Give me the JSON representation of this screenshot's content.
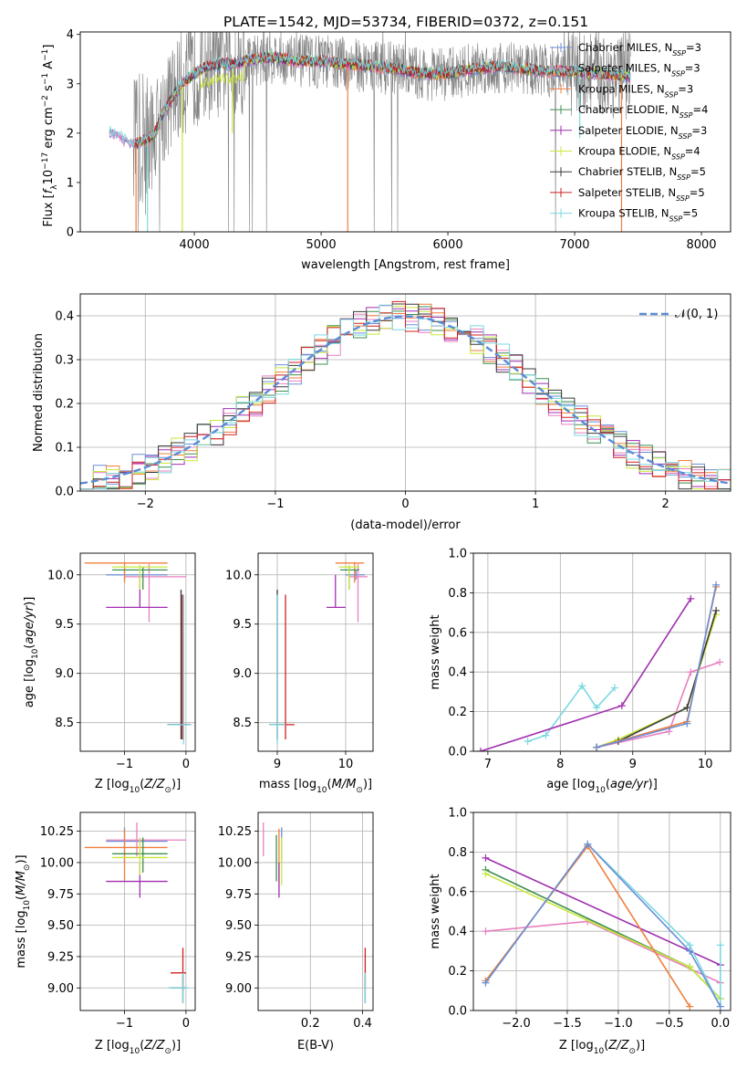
{
  "figure": {
    "title": "PLATE=1542, MJD=53734, FIBERID=0372, z=0.151"
  },
  "colors": {
    "data_gray": "#808080",
    "grid": "#b0b0b0",
    "normal_curve": "#5b8bd6"
  },
  "series_colors": [
    "#6a8fd6",
    "#e87fc0",
    "#f07f3c",
    "#3f8f4f",
    "#a02fb0",
    "#c8e83c",
    "#3a3a3a",
    "#d02020",
    "#7ad8e0"
  ],
  "chart_data": [
    {
      "id": "spectrum",
      "type": "line",
      "title": "PLATE=1542, MJD=53734, FIBERID=0372, z=0.151",
      "xlabel": "wavelength [Angstrom, rest frame]",
      "ylabel": "Flux [f_λ10^-17 erg cm^-2 s^-1 A^-1]",
      "xlim": [
        3100,
        8230
      ],
      "ylim": [
        0,
        4.05
      ],
      "xticks": [
        "4000",
        "5000",
        "6000",
        "7000",
        "8000"
      ],
      "yticks": [
        "0",
        "1",
        "2",
        "3",
        "4"
      ],
      "grid": false,
      "legend_position": "top-right",
      "legend": [
        {
          "base": "Chabrier MILES, N",
          "sub": "SSP",
          "tail": "=3"
        },
        {
          "base": "Salpeter MILES, N",
          "sub": "SSP",
          "tail": "=3"
        },
        {
          "base": "Kroupa MILES, N",
          "sub": "SSP",
          "tail": "=3"
        },
        {
          "base": "Chabrier ELODIE, N",
          "sub": "SSP",
          "tail": "=4"
        },
        {
          "base": "Salpeter ELODIE, N",
          "sub": "SSP",
          "tail": "=3"
        },
        {
          "base": "Kroupa ELODIE, N",
          "sub": "SSP",
          "tail": "=4"
        },
        {
          "base": "Chabrier STELIB, N",
          "sub": "SSP",
          "tail": "=5"
        },
        {
          "base": "Salpeter STELIB, N",
          "sub": "SSP",
          "tail": "=5"
        },
        {
          "base": "Kroupa STELIB, N",
          "sub": "SSP",
          "tail": "=5"
        }
      ],
      "model_x": [
        3330,
        3400,
        3450,
        3500,
        3550,
        3600,
        3650,
        3700,
        3750,
        3800,
        3850,
        3900,
        3950,
        4000,
        4100,
        4200,
        4300,
        4400,
        4500,
        4600,
        4700,
        4800,
        4900,
        5000,
        5200,
        5400,
        5600,
        5800,
        6000,
        6200,
        6400,
        6600,
        6800,
        7000,
        7200,
        7400
      ],
      "model_y": [
        2.05,
        1.95,
        1.85,
        1.82,
        1.8,
        1.85,
        1.9,
        2.05,
        2.4,
        2.6,
        2.8,
        3.0,
        3.1,
        3.2,
        3.35,
        3.4,
        3.4,
        3.45,
        3.5,
        3.55,
        3.5,
        3.45,
        3.45,
        3.45,
        3.4,
        3.35,
        3.3,
        3.2,
        3.2,
        3.3,
        3.35,
        3.3,
        3.25,
        3.25,
        3.2,
        3.15
      ]
    },
    {
      "id": "residuals",
      "type": "line",
      "xlabel": "(data-model)/error",
      "ylabel": "Normed distribution",
      "xlim": [
        -2.5,
        2.5
      ],
      "ylim": [
        0,
        0.45
      ],
      "xticks": [
        "−2",
        "−1",
        "0",
        "1",
        "2"
      ],
      "yticks": [
        "0.0",
        "0.1",
        "0.2",
        "0.3",
        "0.4"
      ],
      "grid": true,
      "legend_position": "top-right",
      "legend": [
        "𝒩(0, 1)"
      ],
      "normal": {
        "mean": 0,
        "sigma": 1
      },
      "bin_width": 0.1
    },
    {
      "id": "age-vs-Z",
      "type": "scatter",
      "xlabel": "Z [log10(Z/Z⊙)]",
      "ylabel": "age  [log10(age/yr)]",
      "xlim": [
        -1.72,
        0.15
      ],
      "ylim": [
        8.21,
        10.22
      ],
      "xticks": [
        "−1",
        "0"
      ],
      "yticks": [
        "8.5",
        "9.0",
        "9.5",
        "10.0"
      ],
      "grid": true,
      "points": [
        {
          "x": -1.0,
          "xl": -1.3,
          "xh": -0.3,
          "y": 10.0,
          "yl": 9.95,
          "yh": 10.05,
          "c": 0
        },
        {
          "x": -0.6,
          "xl": -1.0,
          "xh": -0.0,
          "y": 9.98,
          "yl": 9.52,
          "yh": 10.11,
          "c": 1
        },
        {
          "x": -1.0,
          "xl": -1.65,
          "xh": -0.3,
          "y": 10.12,
          "yl": 9.92,
          "yh": 10.13,
          "c": 2
        },
        {
          "x": -0.7,
          "xl": -1.2,
          "xh": -0.3,
          "y": 10.05,
          "yl": 9.85,
          "yh": 10.08,
          "c": 3
        },
        {
          "x": -0.75,
          "xl": -1.3,
          "xh": -0.3,
          "y": 9.67,
          "yl": 9.67,
          "yh": 10.0,
          "c": 4
        },
        {
          "x": -0.75,
          "xl": -1.2,
          "xh": -0.3,
          "y": 10.08,
          "yl": 9.85,
          "yh": 10.1,
          "c": 5
        },
        {
          "x": -0.08,
          "xl": -0.3,
          "xh": 0.08,
          "y": 8.48,
          "yl": 8.33,
          "yh": 9.85,
          "c": 6
        },
        {
          "x": -0.06,
          "xl": -0.3,
          "xh": 0.08,
          "y": 8.48,
          "yl": 8.33,
          "yh": 9.8,
          "c": 7
        },
        {
          "x": -0.04,
          "xl": -0.3,
          "xh": 0.08,
          "y": 8.48,
          "yl": 8.28,
          "yh": 9.8,
          "c": 8
        }
      ]
    },
    {
      "id": "age-vs-mass",
      "type": "scatter",
      "xlabel": "mass [log10(M/M⊙)]",
      "ylabel": "",
      "xlim": [
        8.72,
        10.4
      ],
      "ylim": [
        8.21,
        10.22
      ],
      "xticks": [
        "9",
        "10"
      ],
      "yticks": [
        "8.5",
        "9.0",
        "9.5",
        "10.0"
      ],
      "grid": true,
      "points": [
        {
          "x": 10.15,
          "xl": 10.0,
          "xh": 10.28,
          "y": 10.0,
          "yl": 9.95,
          "yh": 10.05,
          "c": 0
        },
        {
          "x": 10.18,
          "xl": 10.05,
          "xh": 10.32,
          "y": 9.98,
          "yl": 9.52,
          "yh": 10.11,
          "c": 1
        },
        {
          "x": 10.13,
          "xl": 9.85,
          "xh": 10.27,
          "y": 10.12,
          "yl": 9.92,
          "yh": 10.13,
          "c": 2
        },
        {
          "x": 10.05,
          "xl": 9.92,
          "xh": 10.2,
          "y": 10.05,
          "yl": 9.85,
          "yh": 10.08,
          "c": 3
        },
        {
          "x": 9.85,
          "xl": 9.72,
          "xh": 10.0,
          "y": 9.67,
          "yl": 9.67,
          "yh": 10.0,
          "c": 4
        },
        {
          "x": 10.05,
          "xl": 9.9,
          "xh": 10.2,
          "y": 10.08,
          "yl": 9.85,
          "yh": 10.1,
          "c": 5
        },
        {
          "x": 9.0,
          "xl": 8.88,
          "xh": 9.1,
          "y": 8.48,
          "yl": 8.33,
          "yh": 9.85,
          "c": 6
        },
        {
          "x": 9.12,
          "xl": 8.98,
          "xh": 9.25,
          "y": 8.48,
          "yl": 8.33,
          "yh": 9.8,
          "c": 7
        },
        {
          "x": 9.0,
          "xl": 8.88,
          "xh": 9.12,
          "y": 8.48,
          "yl": 8.28,
          "yh": 9.8,
          "c": 8
        }
      ]
    },
    {
      "id": "mass-weight-vs-age",
      "type": "line",
      "xlabel": "age  [log10(age/yr)]",
      "ylabel": "mass weight",
      "xlim": [
        6.8,
        10.35
      ],
      "ylim": [
        0,
        1.0
      ],
      "xticks": [
        "7",
        "8",
        "9",
        "10"
      ],
      "yticks": [
        "0.0",
        "0.2",
        "0.4",
        "0.6",
        "0.8",
        "1.0"
      ],
      "grid": true,
      "series": [
        {
          "c": 8,
          "x": [
            7.55,
            7.8,
            8.3,
            8.5,
            8.75
          ],
          "y": [
            0.05,
            0.08,
            0.33,
            0.22,
            0.32
          ]
        },
        {
          "c": 4,
          "x": [
            6.9,
            8.85,
            9.8
          ],
          "y": [
            0.0,
            0.23,
            0.77
          ]
        },
        {
          "c": 1,
          "x": [
            8.5,
            9.5,
            9.8,
            10.2
          ],
          "y": [
            0.02,
            0.1,
            0.4,
            0.45
          ]
        },
        {
          "c": 5,
          "x": [
            8.5,
            8.8,
            9.75,
            10.15
          ],
          "y": [
            0.02,
            0.06,
            0.22,
            0.69
          ]
        },
        {
          "c": 6,
          "x": [
            8.5,
            8.8,
            9.75,
            10.15
          ],
          "y": [
            0.02,
            0.05,
            0.22,
            0.71
          ]
        },
        {
          "c": 2,
          "x": [
            8.5,
            9.75,
            10.15
          ],
          "y": [
            0.02,
            0.15,
            0.83
          ]
        },
        {
          "c": 0,
          "x": [
            8.5,
            9.75,
            10.15
          ],
          "y": [
            0.02,
            0.14,
            0.84
          ]
        }
      ]
    },
    {
      "id": "mass-vs-Z",
      "type": "scatter",
      "xlabel": "Z [log10(Z/Z⊙)]",
      "ylabel": "mass [log10(M/M⊙)]",
      "xlim": [
        -1.72,
        0.15
      ],
      "ylim": [
        8.82,
        10.4
      ],
      "xticks": [
        "−1",
        "0"
      ],
      "yticks": [
        "9.00",
        "9.25",
        "9.50",
        "9.75",
        "10.00",
        "10.25"
      ],
      "grid": true,
      "points": [
        {
          "x": -1.0,
          "xl": -1.3,
          "xh": -0.3,
          "y": 10.17,
          "yl": 10.0,
          "yh": 10.28,
          "c": 0
        },
        {
          "x": -0.8,
          "xl": -1.3,
          "xh": 0.0,
          "y": 10.18,
          "yl": 10.05,
          "yh": 10.32,
          "c": 1
        },
        {
          "x": -1.0,
          "xl": -1.65,
          "xh": -0.3,
          "y": 10.12,
          "yl": 9.85,
          "yh": 10.27,
          "c": 2
        },
        {
          "x": -0.7,
          "xl": -1.2,
          "xh": -0.3,
          "y": 10.07,
          "yl": 9.92,
          "yh": 10.2,
          "c": 3
        },
        {
          "x": -0.75,
          "xl": -1.3,
          "xh": -0.3,
          "y": 9.85,
          "yl": 9.72,
          "yh": 10.0,
          "c": 4
        },
        {
          "x": -0.75,
          "xl": -1.2,
          "xh": -0.3,
          "y": 10.04,
          "yl": 9.9,
          "yh": 10.2,
          "c": 5
        },
        {
          "x": -0.05,
          "xl": -0.25,
          "xh": 0.0,
          "y": 9.0,
          "yl": 8.88,
          "yh": 9.1,
          "c": 6
        },
        {
          "x": -0.05,
          "xl": -0.25,
          "xh": 0.0,
          "y": 9.12,
          "yl": 8.98,
          "yh": 9.32,
          "c": 7
        },
        {
          "x": -0.05,
          "xl": -0.3,
          "xh": 0.05,
          "y": 9.0,
          "yl": 8.88,
          "yh": 9.12,
          "c": 8
        }
      ]
    },
    {
      "id": "mass-vs-EBV",
      "type": "scatter",
      "xlabel": "E(B-V)",
      "ylabel": "",
      "xlim": [
        0.0,
        0.44
      ],
      "ylim": [
        8.82,
        10.4
      ],
      "xticks": [
        "0.2",
        "0.4"
      ],
      "yticks": [
        "9.00",
        "9.25",
        "9.50",
        "9.75",
        "10.00",
        "10.25"
      ],
      "grid": true,
      "points": [
        {
          "x": 0.09,
          "xl": 0.09,
          "xh": 0.09,
          "y": 10.17,
          "yl": 10.0,
          "yh": 10.28,
          "c": 0
        },
        {
          "x": 0.02,
          "xl": 0.02,
          "xh": 0.02,
          "y": 10.18,
          "yl": 10.05,
          "yh": 10.32,
          "c": 1
        },
        {
          "x": 0.08,
          "xl": 0.08,
          "xh": 0.08,
          "y": 10.12,
          "yl": 9.85,
          "yh": 10.27,
          "c": 2
        },
        {
          "x": 0.07,
          "xl": 0.07,
          "xh": 0.07,
          "y": 10.07,
          "yl": 9.85,
          "yh": 10.22,
          "c": 3
        },
        {
          "x": 0.08,
          "xl": 0.08,
          "xh": 0.08,
          "y": 9.85,
          "yl": 9.72,
          "yh": 10.0,
          "c": 4
        },
        {
          "x": 0.09,
          "xl": 0.09,
          "xh": 0.09,
          "y": 10.04,
          "yl": 9.82,
          "yh": 10.2,
          "c": 5
        },
        {
          "x": 0.41,
          "xl": 0.41,
          "xh": 0.41,
          "y": 9.0,
          "yl": 8.88,
          "yh": 9.1,
          "c": 6
        },
        {
          "x": 0.41,
          "xl": 0.41,
          "xh": 0.41,
          "y": 9.12,
          "yl": 9.0,
          "yh": 9.32,
          "c": 7
        },
        {
          "x": 0.41,
          "xl": 0.41,
          "xh": 0.41,
          "y": 9.0,
          "yl": 8.88,
          "yh": 9.12,
          "c": 8
        }
      ]
    },
    {
      "id": "mass-weight-vs-Z",
      "type": "line",
      "xlabel": "Z [log10(Z/Z⊙)]",
      "ylabel": "mass weight",
      "xlim": [
        -2.42,
        0.1
      ],
      "ylim": [
        0,
        1.0
      ],
      "xticks": [
        "−2.0",
        "−1.5",
        "−1.0",
        "−0.5",
        "0.0"
      ],
      "yticks": [
        "0.0",
        "0.2",
        "0.4",
        "0.6",
        "0.8",
        "1.0"
      ],
      "grid": true,
      "series": [
        {
          "c": 4,
          "x": [
            -2.3,
            0.0
          ],
          "y": [
            0.77,
            0.23
          ]
        },
        {
          "c": 1,
          "x": [
            -2.3,
            -1.3,
            0.0
          ],
          "y": [
            0.4,
            0.45,
            0.14
          ]
        },
        {
          "c": 3,
          "x": [
            -2.3,
            -0.3,
            0.0
          ],
          "y": [
            0.71,
            0.22,
            0.06
          ]
        },
        {
          "c": 5,
          "x": [
            -2.3,
            -0.3,
            0.0
          ],
          "y": [
            0.69,
            0.22,
            0.06
          ]
        },
        {
          "c": 8,
          "x": [
            -2.3,
            -1.3,
            -0.3,
            0.0,
            0.0
          ],
          "y": [
            0.14,
            0.84,
            0.33,
            0.02,
            0.33
          ]
        },
        {
          "c": 2,
          "x": [
            -2.3,
            -1.3,
            -0.3
          ],
          "y": [
            0.15,
            0.83,
            0.02
          ]
        },
        {
          "c": 0,
          "x": [
            -2.3,
            -1.3,
            -0.3,
            0.0
          ],
          "y": [
            0.14,
            0.84,
            0.3,
            0.02
          ]
        }
      ]
    }
  ]
}
